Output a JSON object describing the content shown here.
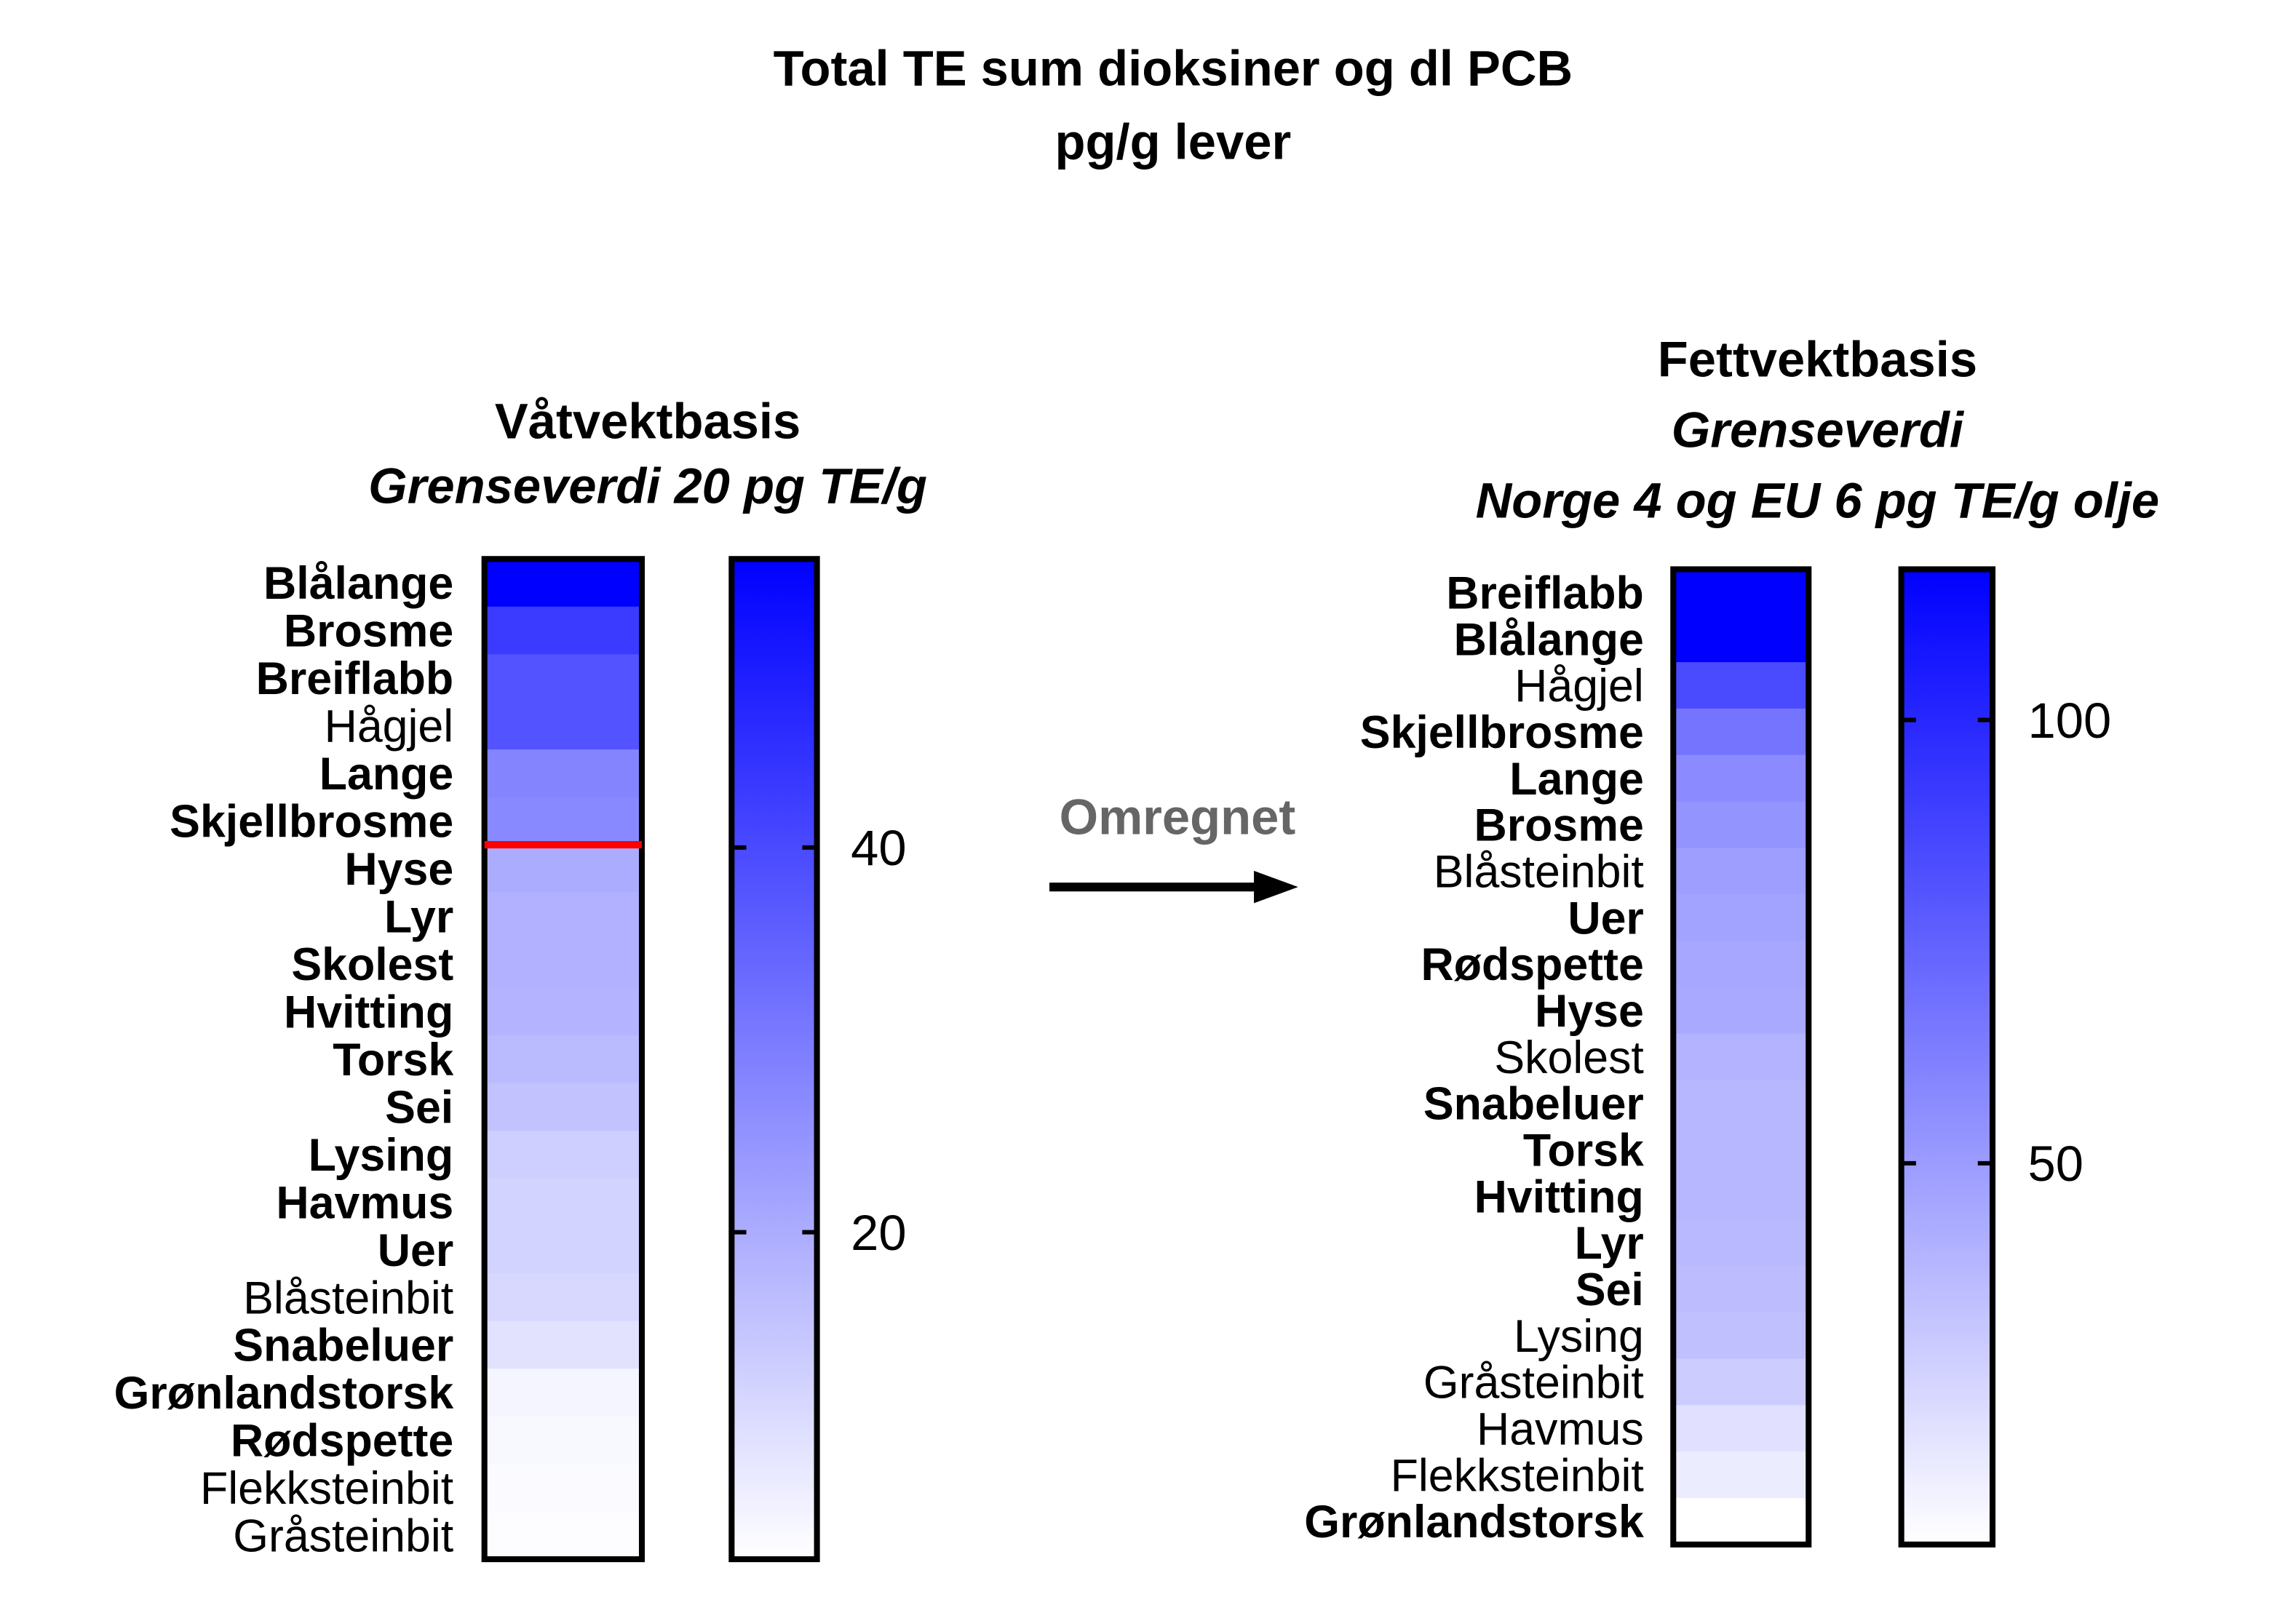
{
  "chart_data": {
    "type": "heatmap",
    "title": [
      "Total TE sum dioksiner og dl PCB",
      "pg/g lever"
    ],
    "arrow_label": "Omregnet",
    "colors": {
      "high": "#0000ff",
      "low": "#ffffff",
      "limit_line": "#ff0000"
    },
    "panels": [
      {
        "heading": [
          "Våtvektbasis",
          "Grenseverdi 20 pg TE/g"
        ],
        "heading_italic": [
          false,
          true
        ],
        "range": [
          3,
          55
        ],
        "ticks": [
          20,
          40
        ],
        "limit_value": 20,
        "categories": [
          "Blålange",
          "Brosme",
          "Breiflabb",
          "Hågjel",
          "Lange",
          "Skjellbrosme",
          "Hyse",
          "Lyr",
          "Skolest",
          "Hvitting",
          "Torsk",
          "Sei",
          "Lysing",
          "Havmus",
          "Uer",
          "Blåsteinbit",
          "Snabeluer",
          "Grønlandstorsk",
          "Rødspette",
          "Flekksteinbit",
          "Gråsteinbit"
        ],
        "bold": [
          true,
          true,
          true,
          false,
          true,
          true,
          true,
          true,
          true,
          true,
          true,
          true,
          true,
          true,
          true,
          false,
          true,
          true,
          true,
          false,
          false
        ],
        "values": [
          55,
          43,
          38,
          38,
          28,
          27,
          20,
          19,
          19,
          18.5,
          17,
          15.5,
          13,
          12,
          12,
          11,
          9,
          5,
          4.5,
          4,
          3.5
        ]
      },
      {
        "heading": [
          "Fettvektbasis",
          "Grenseverdi",
          "Norge 4 og EU 6 pg TE/g olje"
        ],
        "heading_italic": [
          false,
          true,
          true
        ],
        "range": [
          7,
          117
        ],
        "ticks": [
          50,
          100
        ],
        "categories": [
          "Breiflabb",
          "Blålange",
          "Hågjel",
          "Skjellbrosme",
          "Lange",
          "Brosme",
          "Blåsteinbit",
          "Uer",
          "Rødspette",
          "Hyse",
          "Skolest",
          "Snabeluer",
          "Torsk",
          "Hvitting",
          "Lyr",
          "Sei",
          "Lysing",
          "Gråsteinbit",
          "Havmus",
          "Flekksteinbit",
          "Grønlandstorsk"
        ],
        "bold": [
          true,
          true,
          false,
          true,
          true,
          true,
          false,
          true,
          true,
          true,
          false,
          true,
          true,
          true,
          true,
          true,
          false,
          false,
          false,
          false,
          true
        ],
        "values": [
          117,
          117,
          85,
          67,
          57,
          53,
          49,
          47,
          45,
          44,
          40,
          38,
          38,
          38,
          37,
          36,
          34,
          29,
          20,
          15,
          7
        ]
      }
    ]
  }
}
